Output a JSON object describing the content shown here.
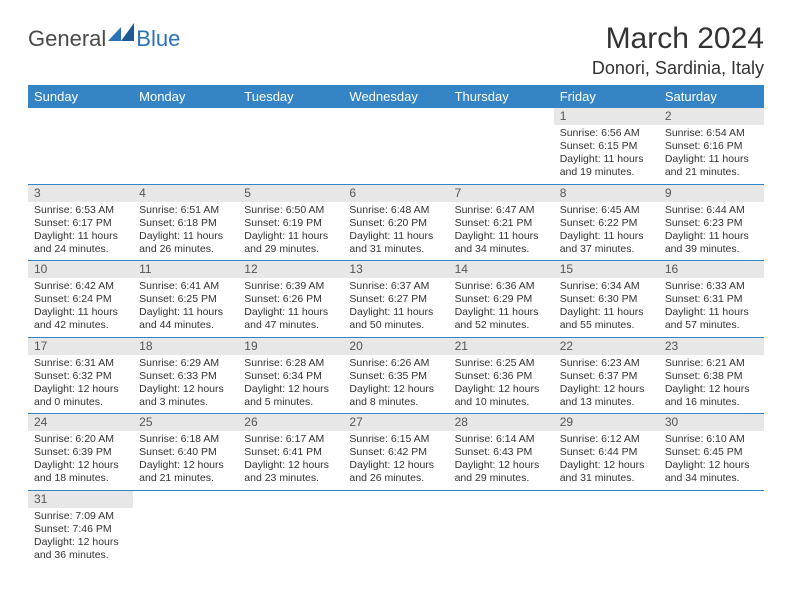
{
  "logo": {
    "part1": "General",
    "part2": "Blue"
  },
  "title": "March 2024",
  "subtitle": "Donori, Sardinia, Italy",
  "colors": {
    "header_bg": "#3585c6",
    "header_text": "#ffffff",
    "daynum_bg": "#e7e7e7",
    "text": "#333333",
    "rule": "#3585c6"
  },
  "dayNames": [
    "Sunday",
    "Monday",
    "Tuesday",
    "Wednesday",
    "Thursday",
    "Friday",
    "Saturday"
  ],
  "weeks": [
    [
      {
        "n": "",
        "sr": "",
        "ss": "",
        "dl": ""
      },
      {
        "n": "",
        "sr": "",
        "ss": "",
        "dl": ""
      },
      {
        "n": "",
        "sr": "",
        "ss": "",
        "dl": ""
      },
      {
        "n": "",
        "sr": "",
        "ss": "",
        "dl": ""
      },
      {
        "n": "",
        "sr": "",
        "ss": "",
        "dl": ""
      },
      {
        "n": "1",
        "sr": "Sunrise: 6:56 AM",
        "ss": "Sunset: 6:15 PM",
        "dl": "Daylight: 11 hours and 19 minutes."
      },
      {
        "n": "2",
        "sr": "Sunrise: 6:54 AM",
        "ss": "Sunset: 6:16 PM",
        "dl": "Daylight: 11 hours and 21 minutes."
      }
    ],
    [
      {
        "n": "3",
        "sr": "Sunrise: 6:53 AM",
        "ss": "Sunset: 6:17 PM",
        "dl": "Daylight: 11 hours and 24 minutes."
      },
      {
        "n": "4",
        "sr": "Sunrise: 6:51 AM",
        "ss": "Sunset: 6:18 PM",
        "dl": "Daylight: 11 hours and 26 minutes."
      },
      {
        "n": "5",
        "sr": "Sunrise: 6:50 AM",
        "ss": "Sunset: 6:19 PM",
        "dl": "Daylight: 11 hours and 29 minutes."
      },
      {
        "n": "6",
        "sr": "Sunrise: 6:48 AM",
        "ss": "Sunset: 6:20 PM",
        "dl": "Daylight: 11 hours and 31 minutes."
      },
      {
        "n": "7",
        "sr": "Sunrise: 6:47 AM",
        "ss": "Sunset: 6:21 PM",
        "dl": "Daylight: 11 hours and 34 minutes."
      },
      {
        "n": "8",
        "sr": "Sunrise: 6:45 AM",
        "ss": "Sunset: 6:22 PM",
        "dl": "Daylight: 11 hours and 37 minutes."
      },
      {
        "n": "9",
        "sr": "Sunrise: 6:44 AM",
        "ss": "Sunset: 6:23 PM",
        "dl": "Daylight: 11 hours and 39 minutes."
      }
    ],
    [
      {
        "n": "10",
        "sr": "Sunrise: 6:42 AM",
        "ss": "Sunset: 6:24 PM",
        "dl": "Daylight: 11 hours and 42 minutes."
      },
      {
        "n": "11",
        "sr": "Sunrise: 6:41 AM",
        "ss": "Sunset: 6:25 PM",
        "dl": "Daylight: 11 hours and 44 minutes."
      },
      {
        "n": "12",
        "sr": "Sunrise: 6:39 AM",
        "ss": "Sunset: 6:26 PM",
        "dl": "Daylight: 11 hours and 47 minutes."
      },
      {
        "n": "13",
        "sr": "Sunrise: 6:37 AM",
        "ss": "Sunset: 6:27 PM",
        "dl": "Daylight: 11 hours and 50 minutes."
      },
      {
        "n": "14",
        "sr": "Sunrise: 6:36 AM",
        "ss": "Sunset: 6:29 PM",
        "dl": "Daylight: 11 hours and 52 minutes."
      },
      {
        "n": "15",
        "sr": "Sunrise: 6:34 AM",
        "ss": "Sunset: 6:30 PM",
        "dl": "Daylight: 11 hours and 55 minutes."
      },
      {
        "n": "16",
        "sr": "Sunrise: 6:33 AM",
        "ss": "Sunset: 6:31 PM",
        "dl": "Daylight: 11 hours and 57 minutes."
      }
    ],
    [
      {
        "n": "17",
        "sr": "Sunrise: 6:31 AM",
        "ss": "Sunset: 6:32 PM",
        "dl": "Daylight: 12 hours and 0 minutes."
      },
      {
        "n": "18",
        "sr": "Sunrise: 6:29 AM",
        "ss": "Sunset: 6:33 PM",
        "dl": "Daylight: 12 hours and 3 minutes."
      },
      {
        "n": "19",
        "sr": "Sunrise: 6:28 AM",
        "ss": "Sunset: 6:34 PM",
        "dl": "Daylight: 12 hours and 5 minutes."
      },
      {
        "n": "20",
        "sr": "Sunrise: 6:26 AM",
        "ss": "Sunset: 6:35 PM",
        "dl": "Daylight: 12 hours and 8 minutes."
      },
      {
        "n": "21",
        "sr": "Sunrise: 6:25 AM",
        "ss": "Sunset: 6:36 PM",
        "dl": "Daylight: 12 hours and 10 minutes."
      },
      {
        "n": "22",
        "sr": "Sunrise: 6:23 AM",
        "ss": "Sunset: 6:37 PM",
        "dl": "Daylight: 12 hours and 13 minutes."
      },
      {
        "n": "23",
        "sr": "Sunrise: 6:21 AM",
        "ss": "Sunset: 6:38 PM",
        "dl": "Daylight: 12 hours and 16 minutes."
      }
    ],
    [
      {
        "n": "24",
        "sr": "Sunrise: 6:20 AM",
        "ss": "Sunset: 6:39 PM",
        "dl": "Daylight: 12 hours and 18 minutes."
      },
      {
        "n": "25",
        "sr": "Sunrise: 6:18 AM",
        "ss": "Sunset: 6:40 PM",
        "dl": "Daylight: 12 hours and 21 minutes."
      },
      {
        "n": "26",
        "sr": "Sunrise: 6:17 AM",
        "ss": "Sunset: 6:41 PM",
        "dl": "Daylight: 12 hours and 23 minutes."
      },
      {
        "n": "27",
        "sr": "Sunrise: 6:15 AM",
        "ss": "Sunset: 6:42 PM",
        "dl": "Daylight: 12 hours and 26 minutes."
      },
      {
        "n": "28",
        "sr": "Sunrise: 6:14 AM",
        "ss": "Sunset: 6:43 PM",
        "dl": "Daylight: 12 hours and 29 minutes."
      },
      {
        "n": "29",
        "sr": "Sunrise: 6:12 AM",
        "ss": "Sunset: 6:44 PM",
        "dl": "Daylight: 12 hours and 31 minutes."
      },
      {
        "n": "30",
        "sr": "Sunrise: 6:10 AM",
        "ss": "Sunset: 6:45 PM",
        "dl": "Daylight: 12 hours and 34 minutes."
      }
    ],
    [
      {
        "n": "31",
        "sr": "Sunrise: 7:09 AM",
        "ss": "Sunset: 7:46 PM",
        "dl": "Daylight: 12 hours and 36 minutes."
      },
      {
        "n": "",
        "sr": "",
        "ss": "",
        "dl": ""
      },
      {
        "n": "",
        "sr": "",
        "ss": "",
        "dl": ""
      },
      {
        "n": "",
        "sr": "",
        "ss": "",
        "dl": ""
      },
      {
        "n": "",
        "sr": "",
        "ss": "",
        "dl": ""
      },
      {
        "n": "",
        "sr": "",
        "ss": "",
        "dl": ""
      },
      {
        "n": "",
        "sr": "",
        "ss": "",
        "dl": ""
      }
    ]
  ]
}
